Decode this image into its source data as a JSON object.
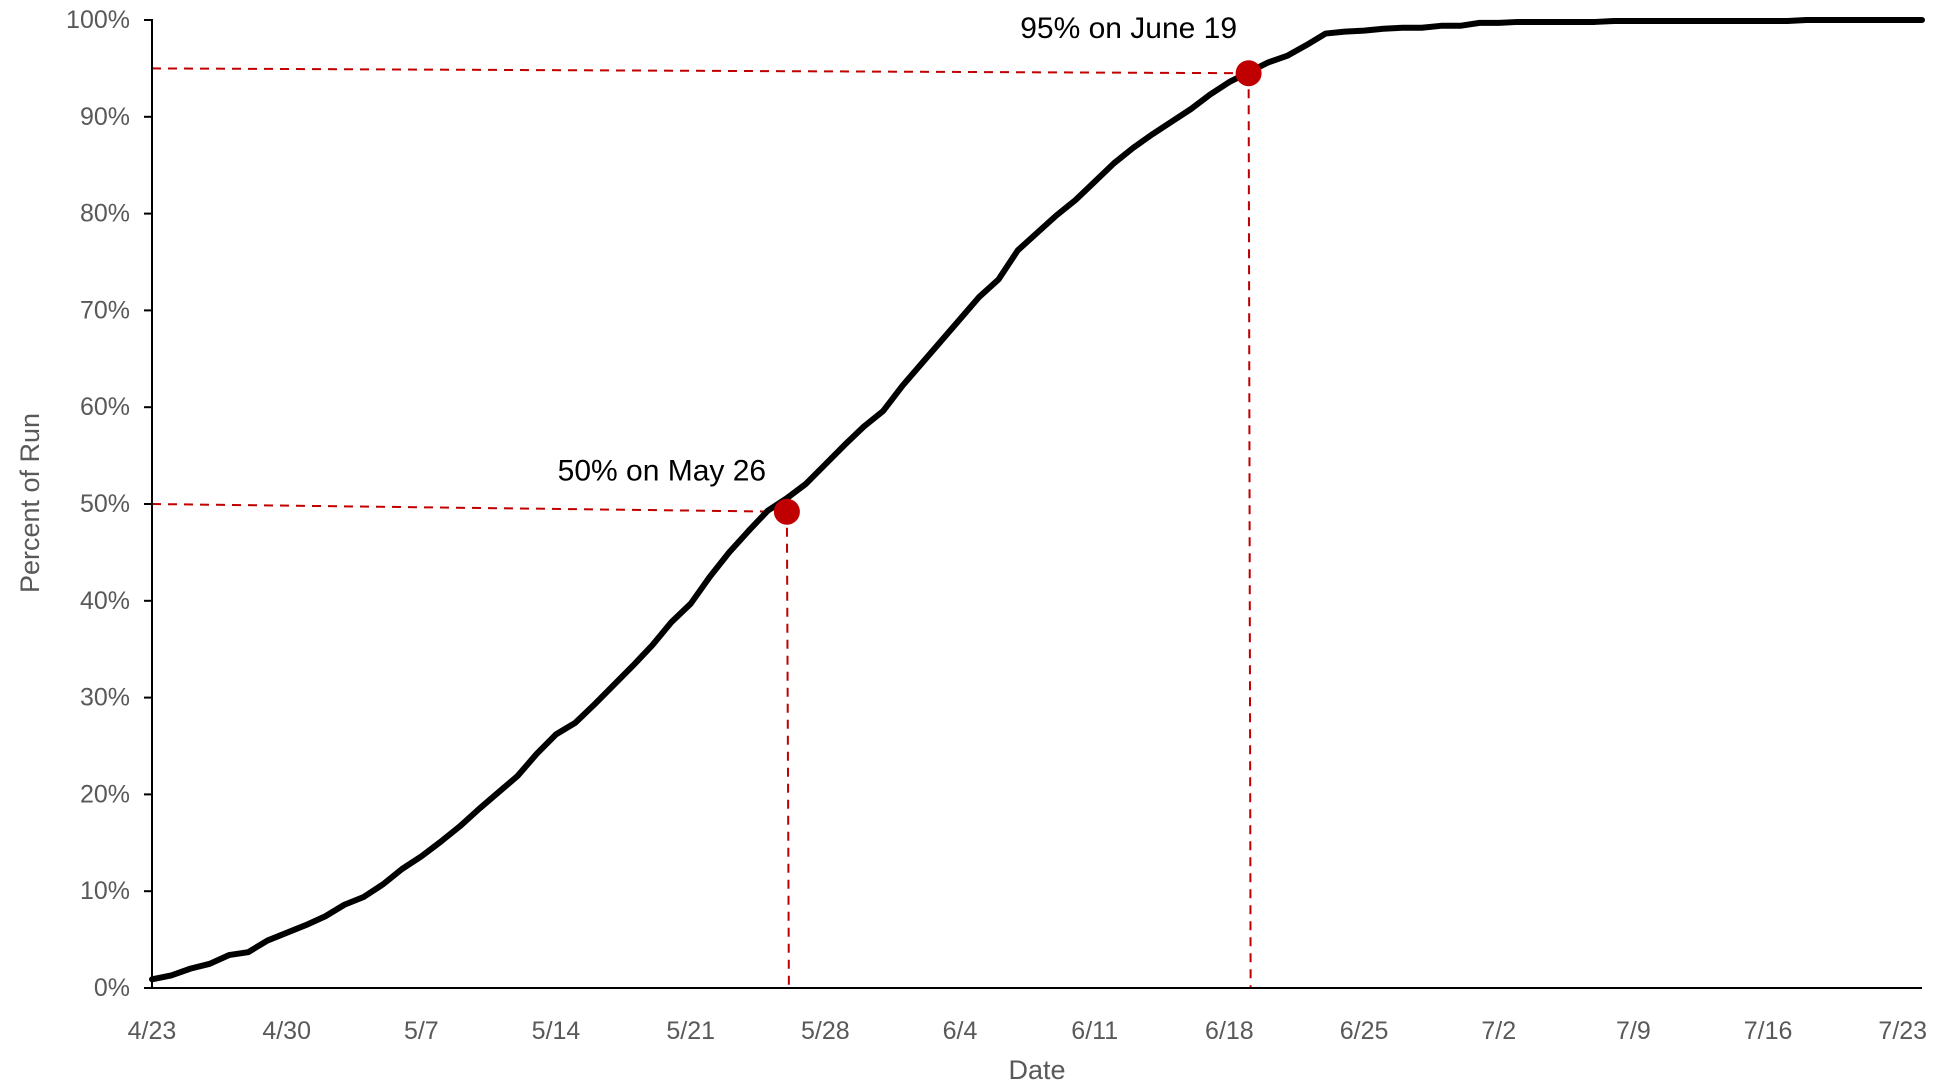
{
  "chart_data": {
    "type": "line",
    "title": "",
    "xlabel": "Date",
    "ylabel": "Percent of Run",
    "x_tick_labels": [
      "4/23",
      "4/30",
      "5/7",
      "5/14",
      "5/21",
      "5/28",
      "6/4",
      "6/11",
      "6/18",
      "6/25",
      "7/2",
      "7/9",
      "7/16",
      "7/23"
    ],
    "x_tick_dates": [
      "2024-04-23",
      "2024-04-30",
      "2024-05-07",
      "2024-05-14",
      "2024-05-21",
      "2024-05-28",
      "2024-06-04",
      "2024-06-11",
      "2024-06-18",
      "2024-06-25",
      "2024-07-02",
      "2024-07-09",
      "2024-07-16",
      "2024-07-23"
    ],
    "y_tick_labels": [
      "0%",
      "10%",
      "20%",
      "30%",
      "40%",
      "50%",
      "60%",
      "70%",
      "80%",
      "90%",
      "100%"
    ],
    "xlim": [
      "2024-04-23",
      "2024-07-24"
    ],
    "ylim": [
      0,
      100
    ],
    "grid": false,
    "legend": "none",
    "line_color": "#000000",
    "annotation_color": "#C00000",
    "series": [
      {
        "x": [
          "2024-04-23",
          "2024-04-24",
          "2024-04-25",
          "2024-04-26",
          "2024-04-27",
          "2024-04-28",
          "2024-04-29",
          "2024-04-30",
          "2024-05-01",
          "2024-05-02",
          "2024-05-03",
          "2024-05-04",
          "2024-05-05",
          "2024-05-06",
          "2024-05-07",
          "2024-05-08",
          "2024-05-09",
          "2024-05-10",
          "2024-05-11",
          "2024-05-12",
          "2024-05-13",
          "2024-05-14",
          "2024-05-15",
          "2024-05-16",
          "2024-05-17",
          "2024-05-18",
          "2024-05-19",
          "2024-05-20",
          "2024-05-21",
          "2024-05-22",
          "2024-05-23",
          "2024-05-24",
          "2024-05-25",
          "2024-05-26",
          "2024-05-27",
          "2024-05-28",
          "2024-05-29",
          "2024-05-30",
          "2024-05-31",
          "2024-06-01",
          "2024-06-02",
          "2024-06-03",
          "2024-06-04",
          "2024-06-05",
          "2024-06-06",
          "2024-06-07",
          "2024-06-08",
          "2024-06-09",
          "2024-06-10",
          "2024-06-11",
          "2024-06-12",
          "2024-06-13",
          "2024-06-14",
          "2024-06-15",
          "2024-06-16",
          "2024-06-17",
          "2024-06-18",
          "2024-06-19",
          "2024-06-20",
          "2024-06-21",
          "2024-06-22",
          "2024-06-23",
          "2024-06-24",
          "2024-06-25",
          "2024-06-26",
          "2024-06-27",
          "2024-06-28",
          "2024-06-29",
          "2024-06-30",
          "2024-07-01",
          "2024-07-02",
          "2024-07-03",
          "2024-07-04",
          "2024-07-05",
          "2024-07-06",
          "2024-07-07",
          "2024-07-08",
          "2024-07-09",
          "2024-07-10",
          "2024-07-11",
          "2024-07-12",
          "2024-07-13",
          "2024-07-14",
          "2024-07-15",
          "2024-07-16",
          "2024-07-17",
          "2024-07-18",
          "2024-07-19",
          "2024-07-20",
          "2024-07-21",
          "2024-07-22",
          "2024-07-23",
          "2024-07-24"
        ],
        "y": [
          0.9,
          1.3,
          2.0,
          2.5,
          3.4,
          3.7,
          4.9,
          5.7,
          6.5,
          7.4,
          8.6,
          9.4,
          10.7,
          12.3,
          13.6,
          15.1,
          16.7,
          18.5,
          20.2,
          21.9,
          24.2,
          26.2,
          27.4,
          29.3,
          31.3,
          33.3,
          35.4,
          37.8,
          39.7,
          42.5,
          45.0,
          47.2,
          49.3,
          50.6,
          52.1,
          54.1,
          56.1,
          58.0,
          59.6,
          62.2,
          64.5,
          66.8,
          69.1,
          71.4,
          73.2,
          76.2,
          78.0,
          79.8,
          81.4,
          83.3,
          85.2,
          86.8,
          88.2,
          89.5,
          90.8,
          92.3,
          93.6,
          94.6,
          95.6,
          96.3,
          97.4,
          98.6,
          98.8,
          98.9,
          99.1,
          99.2,
          99.2,
          99.4,
          99.4,
          99.7,
          99.7,
          99.8,
          99.8,
          99.8,
          99.8,
          99.8,
          99.9,
          99.9,
          99.9,
          99.9,
          99.9,
          99.9,
          99.9,
          99.9,
          99.9,
          99.9,
          100.0,
          100.0,
          100.0,
          100.0,
          100.0,
          100.0,
          100.0
        ]
      }
    ],
    "annotations": [
      {
        "label": "50% on May 26",
        "x": "2024-05-26",
        "y": 49.2,
        "guide_y": 50
      },
      {
        "label": "95% on June 19",
        "x": "2024-06-19",
        "y": 94.5,
        "guide_y": 95
      }
    ]
  }
}
